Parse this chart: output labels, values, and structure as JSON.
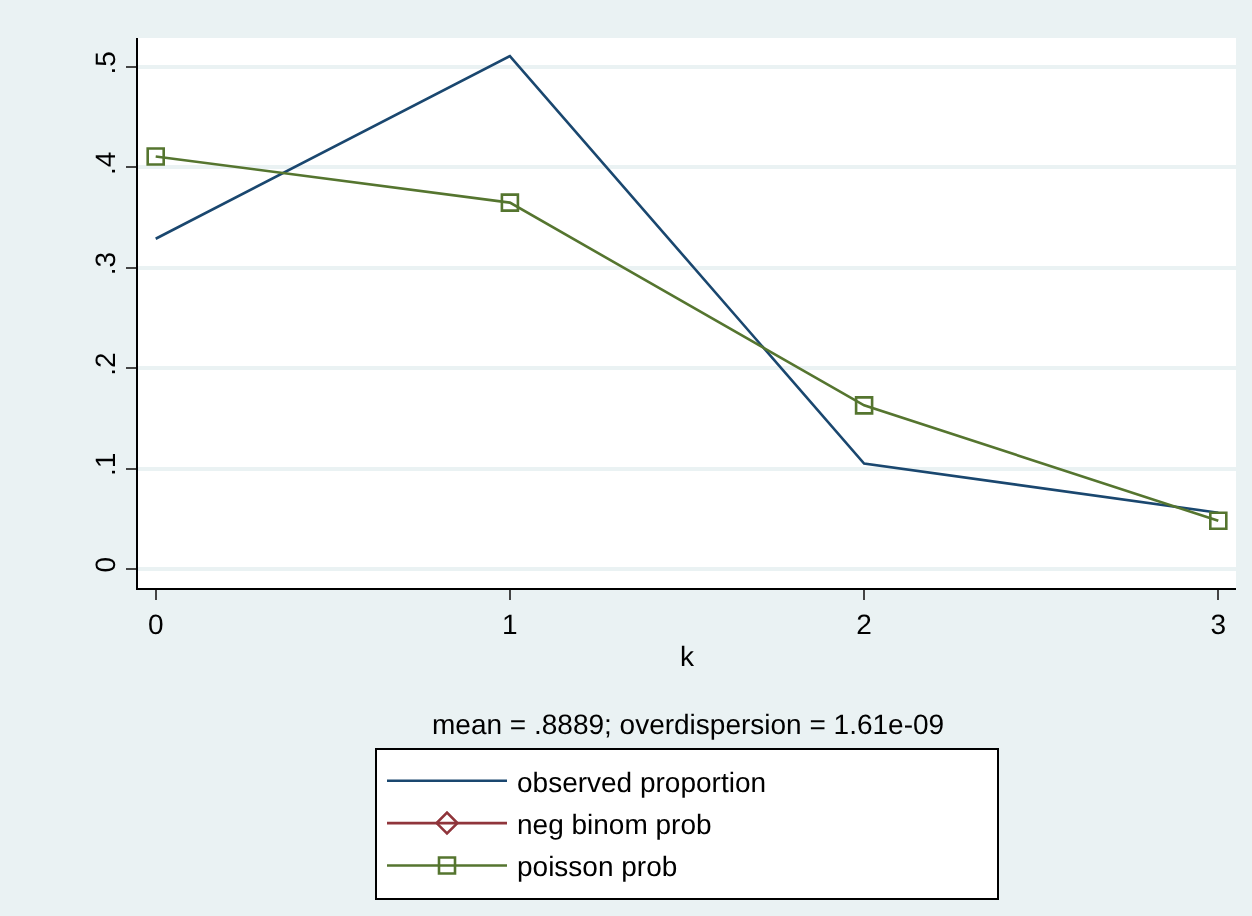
{
  "chart_data": {
    "type": "line",
    "xlabel": "k",
    "x": [
      0,
      1,
      2,
      3
    ],
    "series": [
      {
        "name": "observed proportion",
        "color": "#1a476f",
        "marker": "none",
        "values": [
          0.329,
          0.511,
          0.105,
          0.056
        ]
      },
      {
        "name": "neg binom prob",
        "color": "#90353b",
        "marker": "diamond",
        "values": [
          null,
          null,
          null,
          null
        ]
      },
      {
        "name": "poisson prob",
        "color": "#55752f",
        "marker": "square",
        "values": [
          0.411,
          0.365,
          0.163,
          0.048
        ]
      }
    ],
    "xlim": [
      -0.05,
      3.05
    ],
    "xticks": [
      0,
      1,
      2,
      3
    ],
    "ylim": [
      -0.019,
      0.529
    ],
    "yticks": [
      0,
      {
        "value": 0.1,
        "label": ".1"
      },
      {
        "value": 0.2,
        "label": ".2"
      },
      {
        "value": 0.3,
        "label": ".3"
      },
      {
        "value": 0.4,
        "label": ".4"
      },
      {
        "value": 0.5,
        "label": ".5"
      }
    ],
    "grid": "y",
    "legend": "bottom",
    "line_style": "solid",
    "annotations": [
      "mean = .8889; overdispersion = 1.61e-09"
    ]
  }
}
